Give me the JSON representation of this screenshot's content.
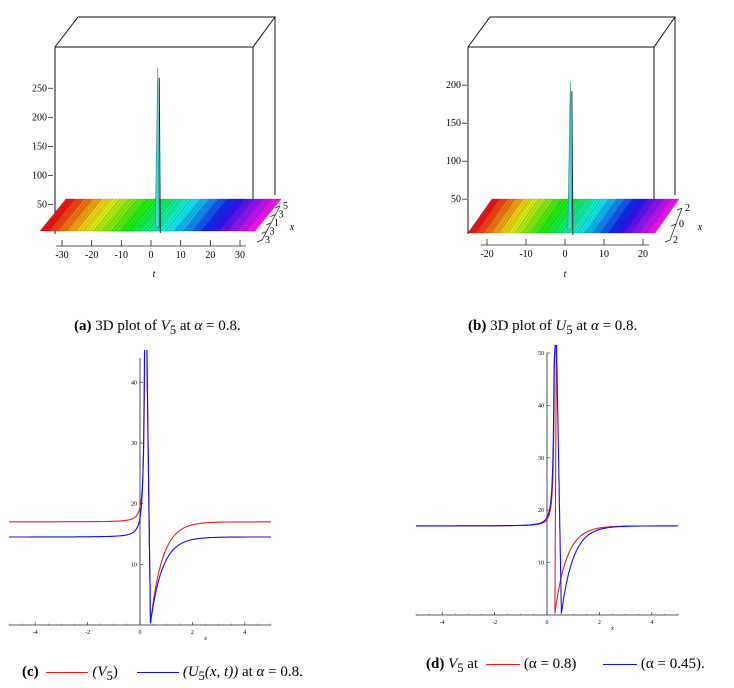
{
  "panels": {
    "a": {
      "letter": "(a)",
      "caption_pre": "3D plot of",
      "var": "V",
      "sub": "5",
      "caption_post": "at",
      "alpha_sym": "α",
      "alpha_value": "= 0.8."
    },
    "b": {
      "letter": "(b)",
      "caption_pre": "3D plot of",
      "var": "U",
      "sub": "5",
      "caption_post": "at",
      "alpha_sym": "α",
      "alpha_value": "= 0.8."
    },
    "c": {
      "letter": "(c)",
      "legend1": "(V",
      "legend1_sub": "5",
      "legend1_end": ")",
      "legend2": "(U",
      "legend2_sub": "5",
      "legend2_args": "(x, t))",
      "caption_post": "at",
      "alpha_sym": "α",
      "alpha_value": "= 0.8."
    },
    "d": {
      "letter": "(d)",
      "var": "V",
      "sub": "5",
      "word_at": "at",
      "legend1": "(α = 0.8)",
      "legend2": "(α = 0.45)."
    }
  },
  "colors": {
    "red": "#e02020",
    "blue": "#1010e8",
    "cyan": "#40d8d8"
  },
  "chart_data": [
    {
      "id": "a",
      "type": "surface3d",
      "title": "3D plot of V5 at α = 0.8",
      "xlabel": "t",
      "ylabel": "x",
      "t_ticks": [
        "-30",
        "-20",
        "-10",
        "0",
        "10",
        "20",
        "30"
      ],
      "x_ticks": [
        "5",
        "3",
        "1",
        "3",
        "3"
      ],
      "z_ticks": [
        "50",
        "100",
        "150",
        "200",
        "250"
      ],
      "z_range": [
        20,
        290
      ],
      "baseline": 30,
      "peak": {
        "t": 0,
        "z": 285
      }
    },
    {
      "id": "b",
      "type": "surface3d",
      "title": "3D plot of U5 at α = 0.8",
      "xlabel": "t",
      "ylabel": "x",
      "t_ticks": [
        "-20",
        "-10",
        "0",
        "10",
        "20"
      ],
      "x_ticks": [
        "2",
        "0",
        "2"
      ],
      "z_ticks": [
        "50",
        "100",
        "150",
        "200"
      ],
      "z_range": [
        20,
        220
      ],
      "baseline": 30,
      "peak": {
        "t": 0,
        "z": 205
      }
    },
    {
      "id": "c",
      "type": "line",
      "xlabel": "x",
      "xlim": [
        -5,
        5
      ],
      "ylim": [
        0,
        44
      ],
      "x_ticks": [
        "-4",
        "-2",
        "0",
        "2",
        "4"
      ],
      "y_ticks": [
        "10",
        "20",
        "30",
        "40"
      ],
      "pole_x": 0.25,
      "series": [
        {
          "name": "V5",
          "color": "red",
          "level": 17,
          "min": 0.3,
          "min_x": 0.4
        },
        {
          "name": "U5(x,t)",
          "color": "blue",
          "level": 14.5,
          "min": 0.3,
          "min_x": 0.4
        }
      ]
    },
    {
      "id": "d",
      "type": "line",
      "xlabel": "x",
      "xlim": [
        -5,
        5
      ],
      "ylim": [
        0,
        50
      ],
      "x_ticks": [
        "-4",
        "-2",
        "0",
        "2",
        "4"
      ],
      "y_ticks": [
        "10",
        "20",
        "30",
        "40",
        "50"
      ],
      "pole_x": 0.35,
      "series": [
        {
          "name": "α = 0.8",
          "color": "red",
          "level": 17,
          "min": 0.3,
          "min_x": 0.3
        },
        {
          "name": "α = 0.45",
          "color": "blue",
          "level": 17,
          "min": 0.3,
          "min_x": 0.55
        }
      ]
    }
  ]
}
